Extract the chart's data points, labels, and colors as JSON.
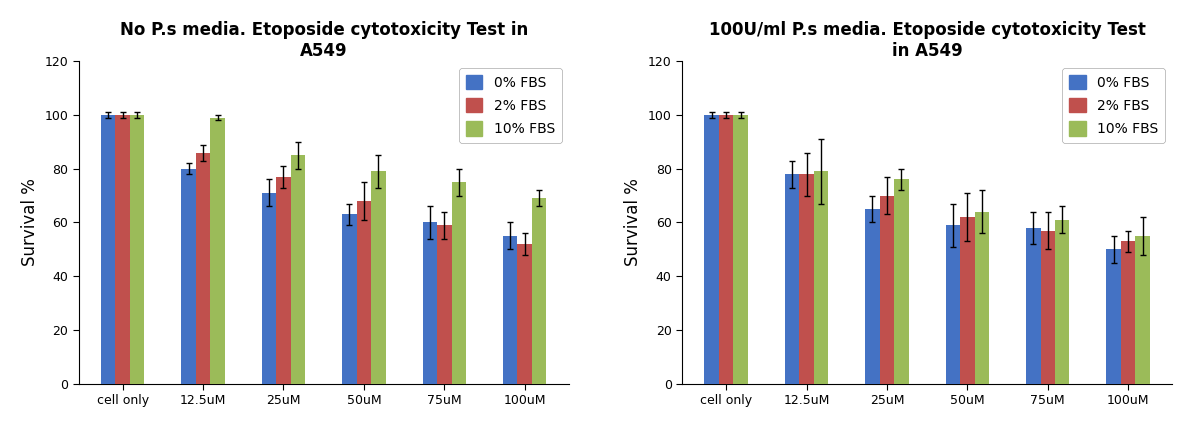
{
  "chart1": {
    "title_line1": "No P.s media. Etoposide cytotoxicity Test in",
    "title_line2": "A549",
    "categories": [
      "cell only",
      "12.5uM",
      "25uM",
      "50uM",
      "75uM",
      "100uM"
    ],
    "series": {
      "0% FBS": [
        100,
        80,
        71,
        63,
        60,
        55
      ],
      "2% FBS": [
        100,
        86,
        77,
        68,
        59,
        52
      ],
      "10% FBS": [
        100,
        99,
        85,
        79,
        75,
        69
      ]
    },
    "errors": {
      "0% FBS": [
        1,
        2,
        5,
        4,
        6,
        5
      ],
      "2% FBS": [
        1,
        3,
        4,
        7,
        5,
        4
      ],
      "10% FBS": [
        1,
        1,
        5,
        6,
        5,
        3
      ]
    }
  },
  "chart2": {
    "title_line1": "100U/ml P.s media. Etoposide cytotoxicity Test",
    "title_line2": "in A549",
    "categories": [
      "cell only",
      "12.5uM",
      "25uM",
      "50uM",
      "75uM",
      "100uM"
    ],
    "series": {
      "0% FBS": [
        100,
        78,
        65,
        59,
        58,
        50
      ],
      "2% FBS": [
        100,
        78,
        70,
        62,
        57,
        53
      ],
      "10% FBS": [
        100,
        79,
        76,
        64,
        61,
        55
      ]
    },
    "errors": {
      "0% FBS": [
        1,
        5,
        5,
        8,
        6,
        5
      ],
      "2% FBS": [
        1,
        8,
        7,
        9,
        7,
        4
      ],
      "10% FBS": [
        1,
        12,
        4,
        8,
        5,
        7
      ]
    }
  },
  "colors": {
    "0% FBS": "#4472C4",
    "2% FBS": "#C0504D",
    "10% FBS": "#9BBB59"
  },
  "ylabel": "Survival %",
  "ylim": [
    0,
    120
  ],
  "yticks": [
    0,
    20,
    40,
    60,
    80,
    100,
    120
  ],
  "bar_width": 0.18,
  "title_fontsize": 12,
  "axis_label_fontsize": 12,
  "tick_fontsize": 9,
  "legend_fontsize": 10
}
